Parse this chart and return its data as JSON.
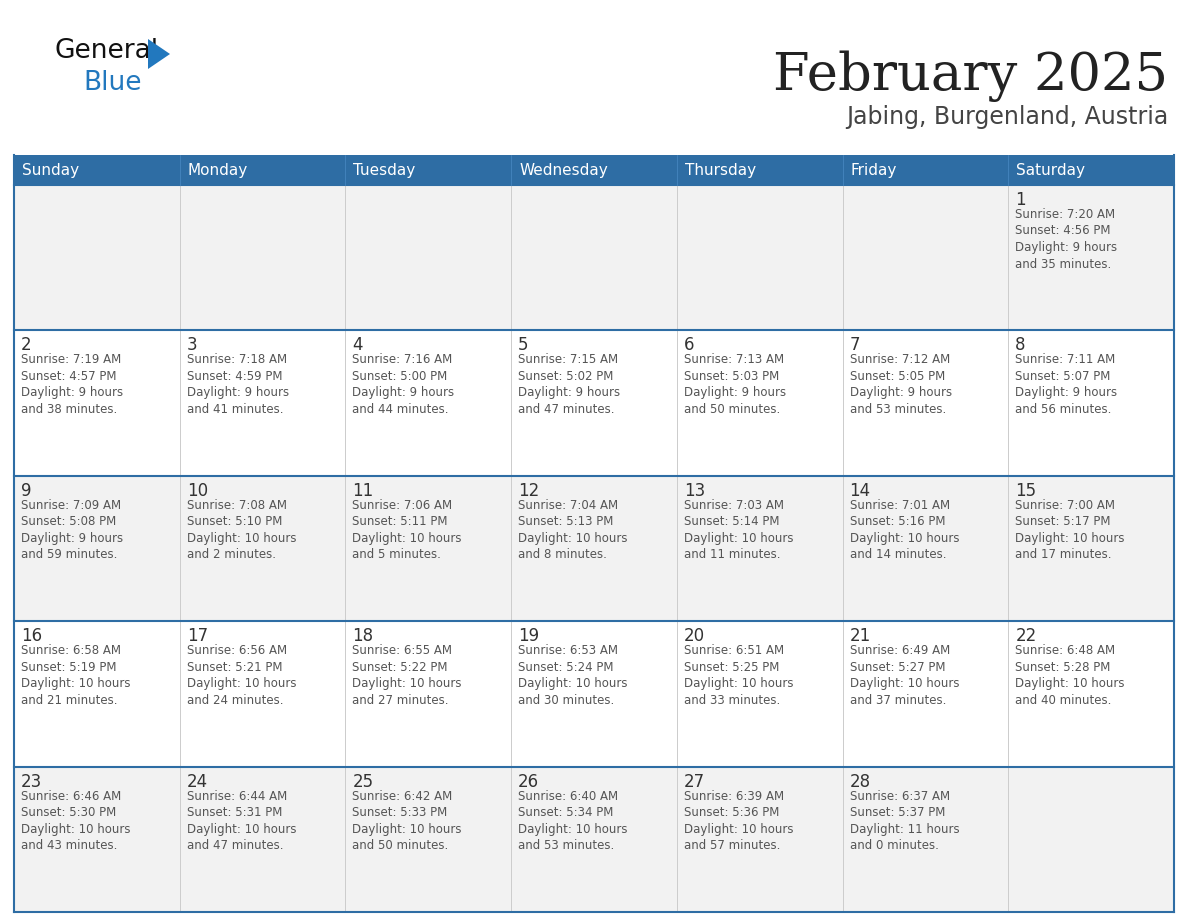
{
  "title": "February 2025",
  "subtitle": "Jabing, Burgenland, Austria",
  "header_bg": "#2E6DA4",
  "header_text_color": "#FFFFFF",
  "cell_bg_week1": "#F2F2F2",
  "cell_bg_week2": "#FFFFFF",
  "cell_bg_week3": "#F2F2F2",
  "cell_bg_week4": "#FFFFFF",
  "cell_bg_week5": "#F2F2F2",
  "border_color": "#2E6DA4",
  "cell_line_color": "#AAAAAA",
  "day_headers": [
    "Sunday",
    "Monday",
    "Tuesday",
    "Wednesday",
    "Thursday",
    "Friday",
    "Saturday"
  ],
  "title_color": "#222222",
  "subtitle_color": "#444444",
  "day_num_color": "#333333",
  "cell_text_color": "#555555",
  "logo_general_color": "#111111",
  "logo_blue_color": "#2278BE",
  "logo_triangle_color": "#2278BE",
  "weeks": [
    [
      {
        "day": null,
        "info": ""
      },
      {
        "day": null,
        "info": ""
      },
      {
        "day": null,
        "info": ""
      },
      {
        "day": null,
        "info": ""
      },
      {
        "day": null,
        "info": ""
      },
      {
        "day": null,
        "info": ""
      },
      {
        "day": 1,
        "info": "Sunrise: 7:20 AM\nSunset: 4:56 PM\nDaylight: 9 hours\nand 35 minutes."
      }
    ],
    [
      {
        "day": 2,
        "info": "Sunrise: 7:19 AM\nSunset: 4:57 PM\nDaylight: 9 hours\nand 38 minutes."
      },
      {
        "day": 3,
        "info": "Sunrise: 7:18 AM\nSunset: 4:59 PM\nDaylight: 9 hours\nand 41 minutes."
      },
      {
        "day": 4,
        "info": "Sunrise: 7:16 AM\nSunset: 5:00 PM\nDaylight: 9 hours\nand 44 minutes."
      },
      {
        "day": 5,
        "info": "Sunrise: 7:15 AM\nSunset: 5:02 PM\nDaylight: 9 hours\nand 47 minutes."
      },
      {
        "day": 6,
        "info": "Sunrise: 7:13 AM\nSunset: 5:03 PM\nDaylight: 9 hours\nand 50 minutes."
      },
      {
        "day": 7,
        "info": "Sunrise: 7:12 AM\nSunset: 5:05 PM\nDaylight: 9 hours\nand 53 minutes."
      },
      {
        "day": 8,
        "info": "Sunrise: 7:11 AM\nSunset: 5:07 PM\nDaylight: 9 hours\nand 56 minutes."
      }
    ],
    [
      {
        "day": 9,
        "info": "Sunrise: 7:09 AM\nSunset: 5:08 PM\nDaylight: 9 hours\nand 59 minutes."
      },
      {
        "day": 10,
        "info": "Sunrise: 7:08 AM\nSunset: 5:10 PM\nDaylight: 10 hours\nand 2 minutes."
      },
      {
        "day": 11,
        "info": "Sunrise: 7:06 AM\nSunset: 5:11 PM\nDaylight: 10 hours\nand 5 minutes."
      },
      {
        "day": 12,
        "info": "Sunrise: 7:04 AM\nSunset: 5:13 PM\nDaylight: 10 hours\nand 8 minutes."
      },
      {
        "day": 13,
        "info": "Sunrise: 7:03 AM\nSunset: 5:14 PM\nDaylight: 10 hours\nand 11 minutes."
      },
      {
        "day": 14,
        "info": "Sunrise: 7:01 AM\nSunset: 5:16 PM\nDaylight: 10 hours\nand 14 minutes."
      },
      {
        "day": 15,
        "info": "Sunrise: 7:00 AM\nSunset: 5:17 PM\nDaylight: 10 hours\nand 17 minutes."
      }
    ],
    [
      {
        "day": 16,
        "info": "Sunrise: 6:58 AM\nSunset: 5:19 PM\nDaylight: 10 hours\nand 21 minutes."
      },
      {
        "day": 17,
        "info": "Sunrise: 6:56 AM\nSunset: 5:21 PM\nDaylight: 10 hours\nand 24 minutes."
      },
      {
        "day": 18,
        "info": "Sunrise: 6:55 AM\nSunset: 5:22 PM\nDaylight: 10 hours\nand 27 minutes."
      },
      {
        "day": 19,
        "info": "Sunrise: 6:53 AM\nSunset: 5:24 PM\nDaylight: 10 hours\nand 30 minutes."
      },
      {
        "day": 20,
        "info": "Sunrise: 6:51 AM\nSunset: 5:25 PM\nDaylight: 10 hours\nand 33 minutes."
      },
      {
        "day": 21,
        "info": "Sunrise: 6:49 AM\nSunset: 5:27 PM\nDaylight: 10 hours\nand 37 minutes."
      },
      {
        "day": 22,
        "info": "Sunrise: 6:48 AM\nSunset: 5:28 PM\nDaylight: 10 hours\nand 40 minutes."
      }
    ],
    [
      {
        "day": 23,
        "info": "Sunrise: 6:46 AM\nSunset: 5:30 PM\nDaylight: 10 hours\nand 43 minutes."
      },
      {
        "day": 24,
        "info": "Sunrise: 6:44 AM\nSunset: 5:31 PM\nDaylight: 10 hours\nand 47 minutes."
      },
      {
        "day": 25,
        "info": "Sunrise: 6:42 AM\nSunset: 5:33 PM\nDaylight: 10 hours\nand 50 minutes."
      },
      {
        "day": 26,
        "info": "Sunrise: 6:40 AM\nSunset: 5:34 PM\nDaylight: 10 hours\nand 53 minutes."
      },
      {
        "day": 27,
        "info": "Sunrise: 6:39 AM\nSunset: 5:36 PM\nDaylight: 10 hours\nand 57 minutes."
      },
      {
        "day": 28,
        "info": "Sunrise: 6:37 AM\nSunset: 5:37 PM\nDaylight: 11 hours\nand 0 minutes."
      },
      {
        "day": null,
        "info": ""
      }
    ]
  ],
  "week_bg_colors": [
    "#F2F2F2",
    "#FFFFFF",
    "#F2F2F2",
    "#FFFFFF",
    "#F2F2F2"
  ]
}
